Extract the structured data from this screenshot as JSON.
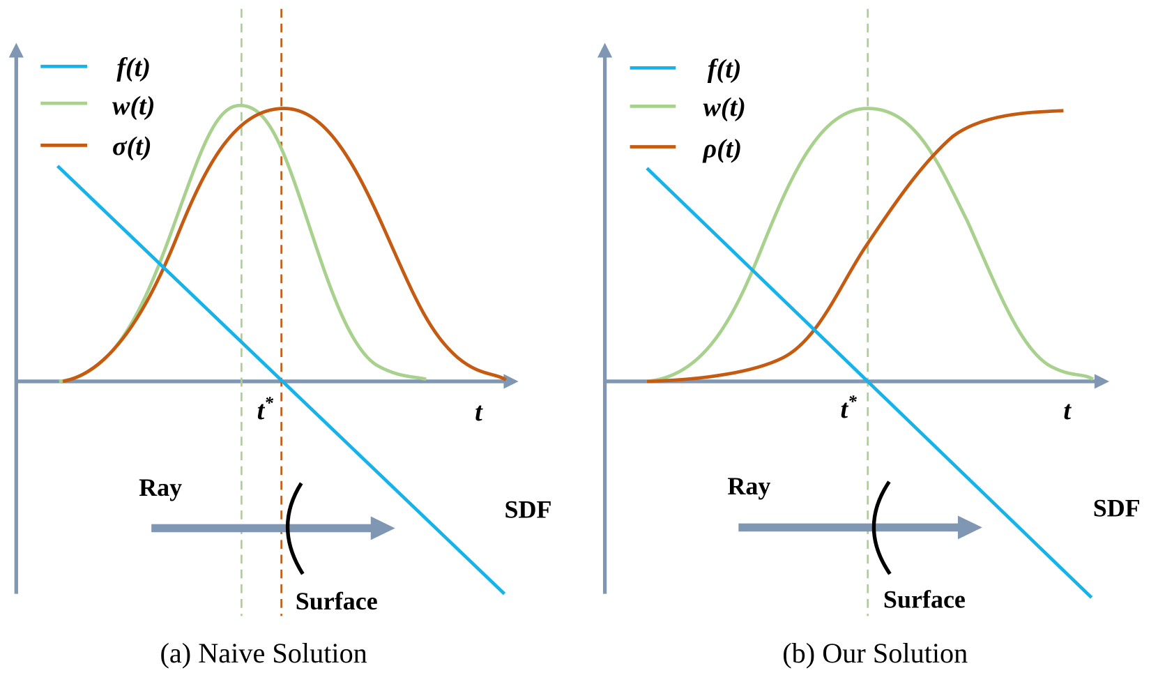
{
  "panels": [
    {
      "legend": [
        "f(t)",
        "w(t)",
        "σ(t)"
      ],
      "t_star": {
        "base": "t",
        "sup": "*"
      },
      "t_axis": "t",
      "ray": "Ray",
      "sdf": "SDF",
      "surface": "Surface",
      "caption": "(a) Naive Solution"
    },
    {
      "legend": [
        "f(t)",
        "w(t)",
        "ρ(t)"
      ],
      "t_star": {
        "base": "t",
        "sup": "*"
      },
      "t_axis": "t",
      "ray": "Ray",
      "sdf": "SDF",
      "surface": "Surface",
      "caption": "(b) Our Solution"
    }
  ]
}
